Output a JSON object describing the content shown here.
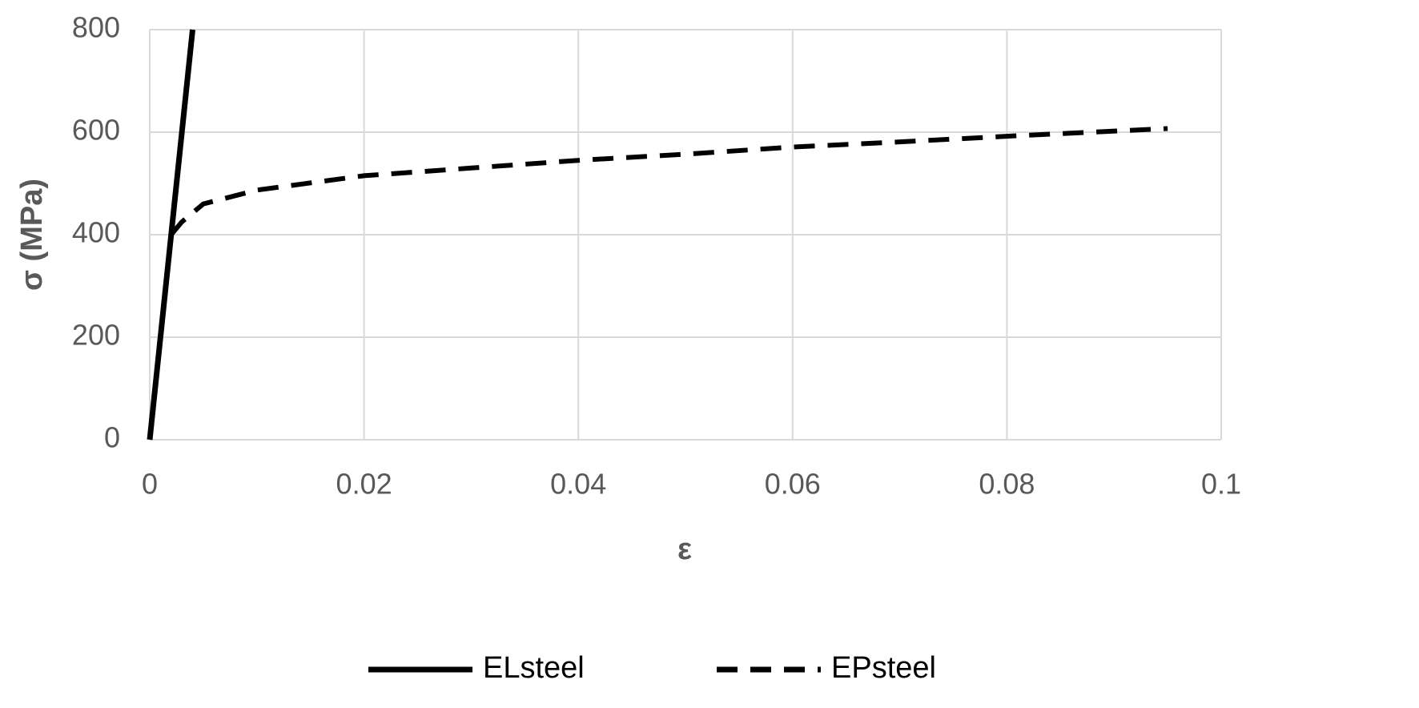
{
  "chart_data": {
    "type": "line",
    "xlabel": "ε",
    "ylabel": "σ (MPa)",
    "xlim": [
      0,
      0.1
    ],
    "xticks": [
      0,
      0.02,
      0.04,
      0.06,
      0.08,
      0.1
    ],
    "ylim": [
      0,
      800
    ],
    "yticks": [
      0,
      200,
      400,
      600,
      800
    ],
    "grid": true,
    "legend": "bottom",
    "series": [
      {
        "name": "ELsteel",
        "color": "#000000",
        "style": "solid",
        "x": [
          0,
          0.004
        ],
        "values": [
          0,
          800
        ]
      },
      {
        "name": "EPsteel",
        "color": "#000000",
        "style": "dashed",
        "x": [
          0.002,
          0.003,
          0.005,
          0.01,
          0.02,
          0.03,
          0.04,
          0.05,
          0.06,
          0.07,
          0.08,
          0.095
        ],
        "values": [
          400,
          425,
          460,
          487,
          515,
          530,
          545,
          557,
          571,
          581,
          592,
          607
        ]
      }
    ]
  }
}
